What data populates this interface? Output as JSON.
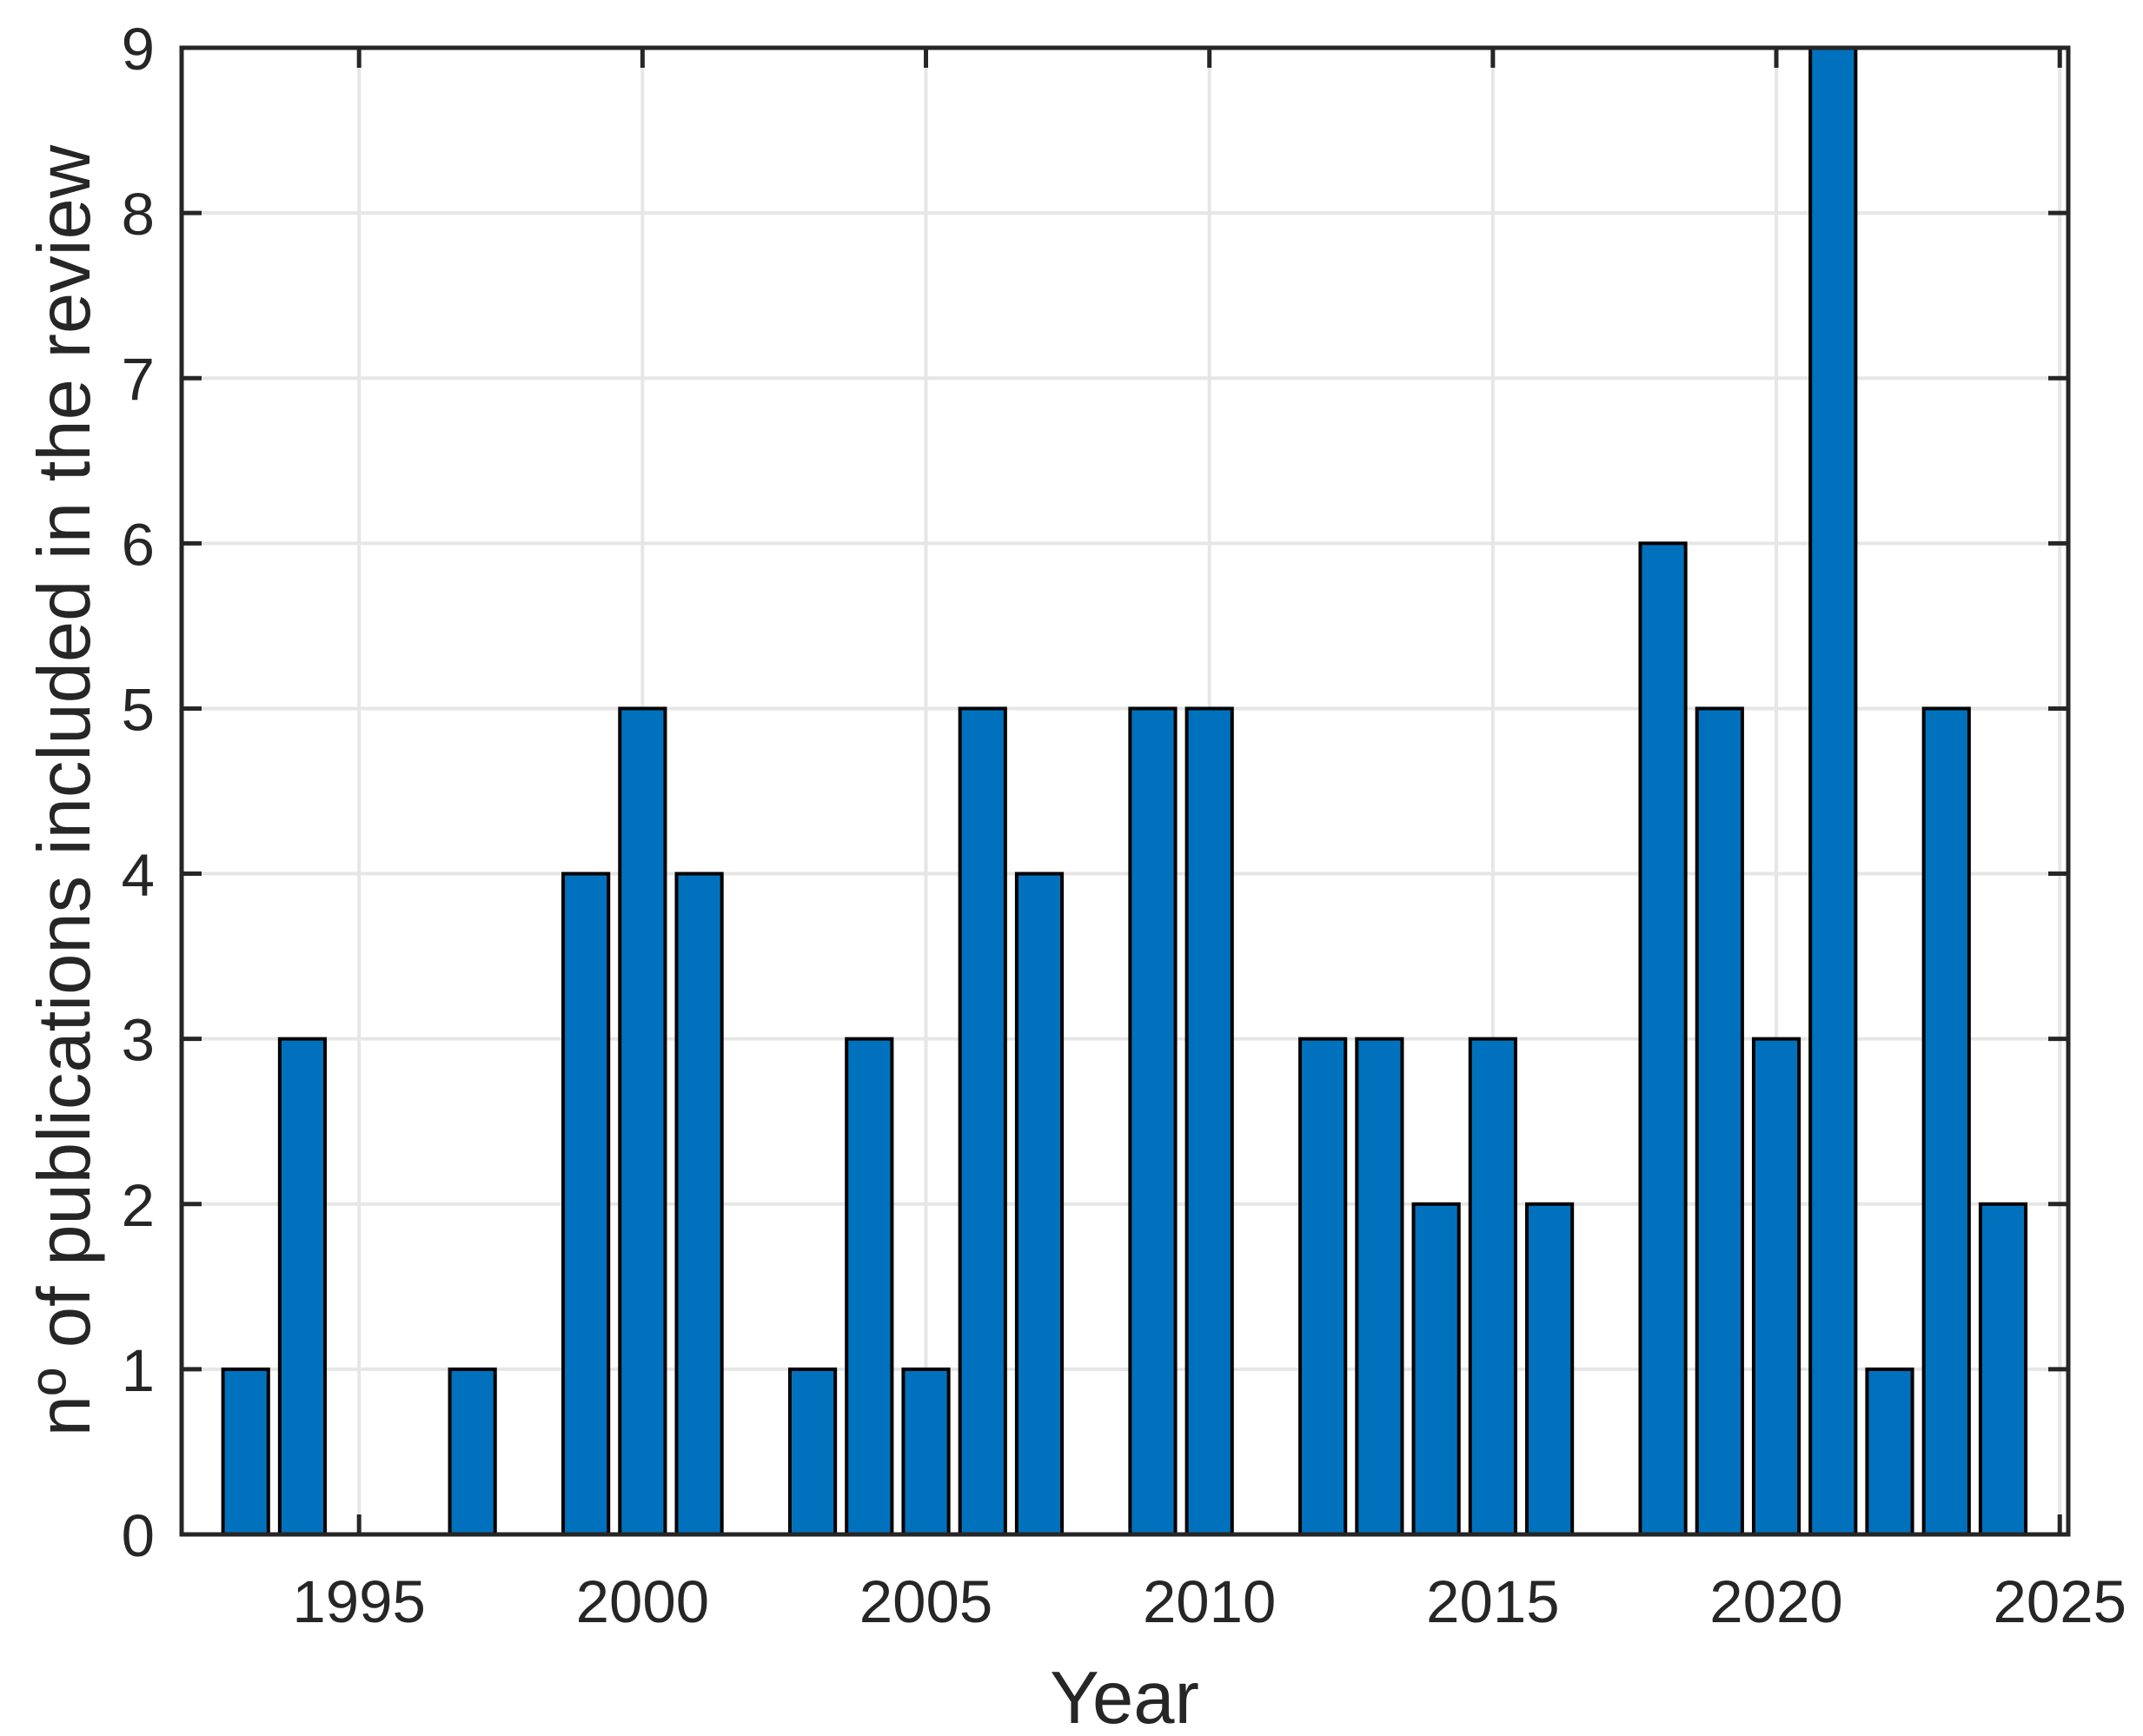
{
  "chart_data": {
    "type": "bar",
    "title": "",
    "xlabel": "Year",
    "ylabel": "nº of publications included in the review",
    "categories": [
      1993,
      1994,
      1995,
      1996,
      1997,
      1998,
      1999,
      2000,
      2001,
      2002,
      2003,
      2004,
      2005,
      2006,
      2007,
      2008,
      2009,
      2010,
      2011,
      2012,
      2013,
      2014,
      2015,
      2016,
      2017,
      2018,
      2019,
      2020,
      2021,
      2022,
      2023,
      2024
    ],
    "values": [
      1,
      3,
      0,
      0,
      1,
      0,
      4,
      5,
      4,
      0,
      1,
      3,
      1,
      5,
      4,
      0,
      5,
      5,
      0,
      3,
      3,
      2,
      3,
      2,
      0,
      6,
      5,
      3,
      9,
      1,
      5,
      2
    ],
    "x_tick_values": [
      1995,
      2000,
      2005,
      2010,
      2015,
      2020,
      2025
    ],
    "x_tick_labels": [
      "1995",
      "2000",
      "2005",
      "2010",
      "2015",
      "2020",
      "2025"
    ],
    "y_tick_values": [
      0,
      1,
      2,
      3,
      4,
      5,
      6,
      7,
      8,
      9
    ],
    "y_tick_labels": [
      "0",
      "1",
      "2",
      "3",
      "4",
      "5",
      "6",
      "7",
      "8",
      "9"
    ],
    "xlim": [
      1991.87,
      2025.15
    ],
    "ylim": [
      0,
      9
    ],
    "bar_width_frac": 0.8,
    "grid": true,
    "legend_position": "none",
    "colors": {
      "bar_fill": "#0072BD",
      "bar_edge": "#000000",
      "grid": "#E6E6E6",
      "axis": "#262626",
      "text": "#262626",
      "background": "#FFFFFF"
    }
  }
}
